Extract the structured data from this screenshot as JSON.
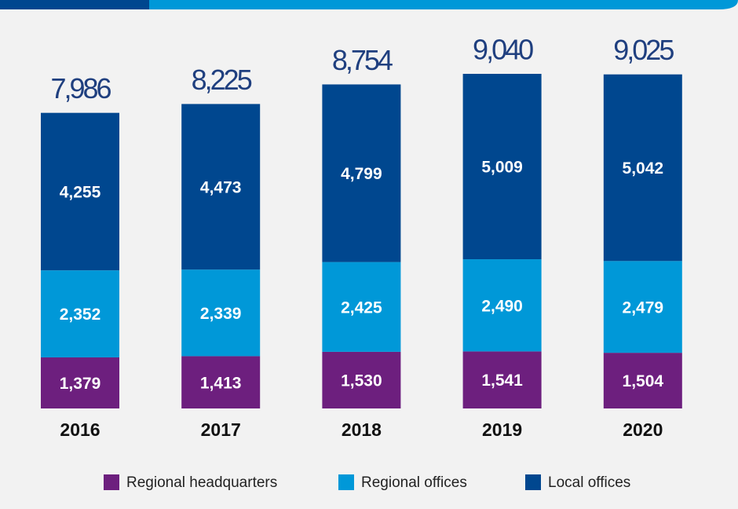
{
  "chart_data": {
    "type": "stacked_bar",
    "categories": [
      "2016",
      "2017",
      "2018",
      "2019",
      "2020"
    ],
    "series": [
      {
        "name": "Regional headquarters",
        "color": "#6d1f7e",
        "values": [
          1379,
          1413,
          1530,
          1541,
          1504
        ],
        "value_labels": [
          "1,379",
          "1,413",
          "1,530",
          "1,541",
          "1,504"
        ]
      },
      {
        "name": "Regional offices",
        "color": "#0098d8",
        "values": [
          2352,
          2339,
          2425,
          2490,
          2479
        ],
        "value_labels": [
          "2,352",
          "2,339",
          "2,425",
          "2,490",
          "2,479"
        ]
      },
      {
        "name": "Local offices",
        "color": "#00478f",
        "values": [
          4255,
          4473,
          4799,
          5009,
          5042
        ],
        "value_labels": [
          "4,255",
          "4,473",
          "4,799",
          "5,009",
          "5,042"
        ]
      }
    ],
    "totals": [
      7986,
      8225,
      8754,
      9040,
      9025
    ],
    "total_labels": [
      "7,986",
      "8,225",
      "8,754",
      "9,040",
      "9,025"
    ]
  }
}
